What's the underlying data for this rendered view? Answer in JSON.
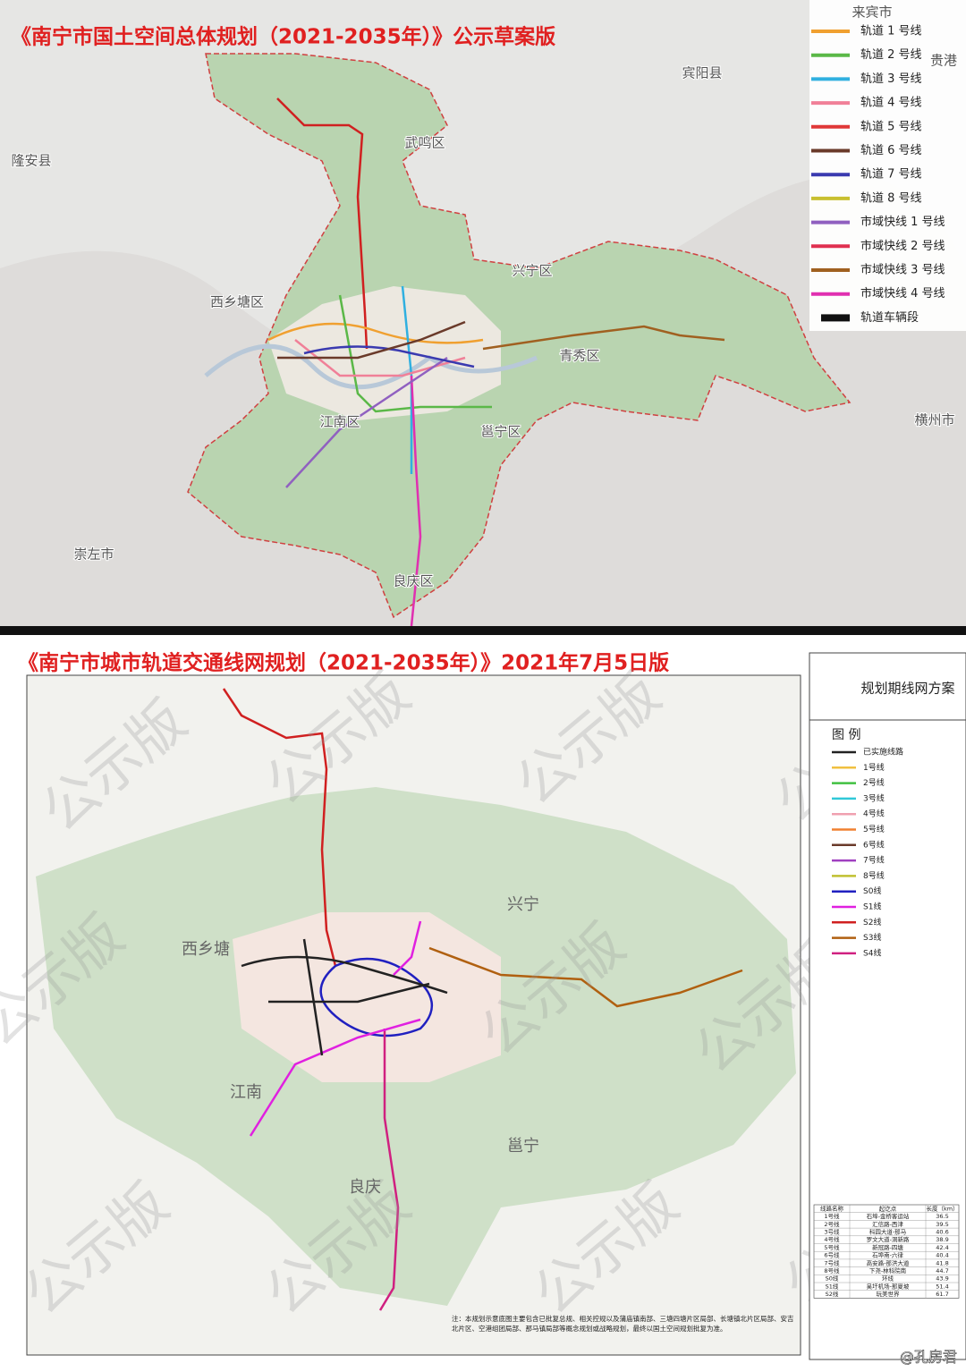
{
  "top_map": {
    "title": "《南宁市国土空间总体规划（2021-2035年）》公示草案版",
    "places": [
      "来宾市",
      "宾阳县",
      "贵港",
      "武鸣区",
      "隆安县",
      "兴宁区",
      "西乡塘区",
      "青秀区",
      "江南区",
      "邕宁区",
      "横州市",
      "崇左市",
      "良庆区"
    ],
    "legend": [
      {
        "label": "轨道 1 号线",
        "color": "#f0a030"
      },
      {
        "label": "轨道 2 号线",
        "color": "#5bb848"
      },
      {
        "label": "轨道 3 号线",
        "color": "#30b0e0"
      },
      {
        "label": "轨道 4 号线",
        "color": "#f08098"
      },
      {
        "label": "轨道 5 号线",
        "color": "#e03838"
      },
      {
        "label": "轨道 6 号线",
        "color": "#6a3a2a"
      },
      {
        "label": "轨道 7 号线",
        "color": "#3a3ab0"
      },
      {
        "label": "轨道 8 号线",
        "color": "#c8c030"
      },
      {
        "label": "市域快线 1 号线",
        "color": "#9060c0"
      },
      {
        "label": "市域快线 2 号线",
        "color": "#e03050"
      },
      {
        "label": "市域快线 3 号线",
        "color": "#a06020"
      },
      {
        "label": "市域快线 4 号线",
        "color": "#e030b0"
      },
      {
        "label": "轨道车辆段",
        "color": "#111111"
      }
    ]
  },
  "bottom_map": {
    "title": "《南宁市城市轨道交通线网规划（2021-2035年）》2021年7月5日版",
    "watermark": "公示版",
    "places": [
      "兴宁",
      "西乡塘",
      "江南",
      "邕宁",
      "良庆"
    ],
    "panel_title": "规划期线网方案",
    "legend_title": "图  例",
    "legend": [
      {
        "label": "已实施线路",
        "color": "#222222"
      },
      {
        "label": "1号线",
        "color": "#f0c040"
      },
      {
        "label": "2号线",
        "color": "#40c040"
      },
      {
        "label": "3号线",
        "color": "#30c8d8"
      },
      {
        "label": "4号线",
        "color": "#f0a0b0"
      },
      {
        "label": "5号线",
        "color": "#f08030"
      },
      {
        "label": "6号线",
        "color": "#6a3a2a"
      },
      {
        "label": "7号线",
        "color": "#a040c0"
      },
      {
        "label": "8号线",
        "color": "#c0c030"
      },
      {
        "label": "S0线",
        "color": "#2020c0"
      },
      {
        "label": "S1线",
        "color": "#e020e0"
      },
      {
        "label": "S2线",
        "color": "#d02020"
      },
      {
        "label": "S3线",
        "color": "#b06010"
      },
      {
        "label": "S4线",
        "color": "#d02080"
      }
    ],
    "table": {
      "headers": [
        "线路名称",
        "起讫点",
        "长度（km）"
      ],
      "rows": [
        [
          "1号线",
          "石埠-金桥客运站",
          "36.5"
        ],
        [
          "2号线",
          "汇信路-西津",
          "39.5"
        ],
        [
          "3号线",
          "科园大道-那马",
          "40.6"
        ],
        [
          "4号线",
          "罗文大道-洞新路",
          "38.9"
        ],
        [
          "5号线",
          "新冠路-四塘",
          "42.4"
        ],
        [
          "6号线",
          "石埠南-六律",
          "40.4"
        ],
        [
          "7号线",
          "高安路-那洪大道",
          "41.8"
        ],
        [
          "8号线",
          "下尧-林科院南",
          "44.7"
        ],
        [
          "S0线",
          "环线",
          "43.9"
        ],
        [
          "S1线",
          "吴圩机场-那夏坡",
          "51.4"
        ],
        [
          "S2线",
          "玩美世界",
          "61.7"
        ]
      ]
    },
    "note": "注：本规划示意底图主要包含已批复总规、相关控规以及蒲庙镇南部、三塘四塘片区局部、长塘镇北片区局部、安吉北片区、空港组团局部、那马镇局部等概念规划或战略规划，最终以国土空间规划批复为准。",
    "credit": "@孔房君"
  }
}
